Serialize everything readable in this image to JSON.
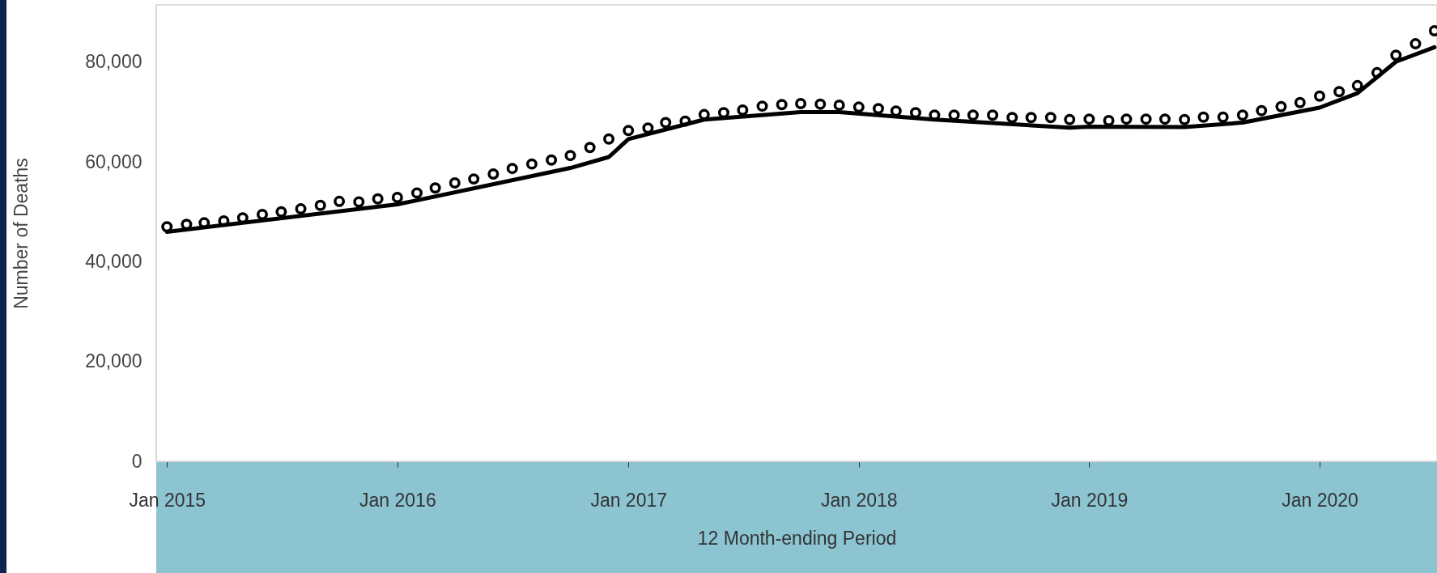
{
  "chart_data": {
    "type": "line",
    "xlabel": "12 Month-ending Period",
    "ylabel": "Number of Deaths",
    "xlim": [
      "2014-12-15",
      "2020-07-05"
    ],
    "ylim": [
      0,
      91500
    ],
    "yticks": [
      0,
      {
        "value": 20000,
        "label": "20,000"
      },
      {
        "value": 40000,
        "label": "40,000"
      },
      {
        "value": 60000,
        "label": "60,000"
      },
      {
        "value": 80000,
        "label": "80,000"
      }
    ],
    "xticks": [
      {
        "value": "2015-01",
        "label": "Jan 2015"
      },
      {
        "value": "2016-01",
        "label": "Jan 2016"
      },
      {
        "value": "2017-01",
        "label": "Jan 2017"
      },
      {
        "value": "2018-01",
        "label": "Jan 2018"
      },
      {
        "value": "2019-01",
        "label": "Jan 2019"
      },
      {
        "value": "2020-01",
        "label": "Jan 2020"
      }
    ],
    "grid": false,
    "series": [
      {
        "color": "#000000",
        "marker": "none",
        "x": [
          "2015-01",
          "2016-01",
          "2016-10",
          "2016-12",
          "2017-01",
          "2017-05",
          "2017-10",
          "2017-12",
          "2018-05",
          "2018-08",
          "2018-12",
          "2019-01",
          "2019-06",
          "2019-09",
          "2020-01",
          "2020-03",
          "2020-05",
          "2020-07"
        ],
        "values": [
          46000,
          51500,
          58800,
          61000,
          64600,
          68500,
          70000,
          70000,
          68500,
          67800,
          66900,
          67100,
          67000,
          67900,
          70900,
          73800,
          80100,
          83000
        ]
      },
      {
        "type": "scatter",
        "color": "#000000",
        "marker": "circle",
        "x": [
          "2015-01",
          "2015-02",
          "2015-03",
          "2015-04",
          "2015-05",
          "2015-06",
          "2015-07",
          "2015-08",
          "2015-09",
          "2015-10",
          "2015-11",
          "2015-12",
          "2016-01",
          "2016-02",
          "2016-03",
          "2016-04",
          "2016-05",
          "2016-06",
          "2016-07",
          "2016-08",
          "2016-09",
          "2016-10",
          "2016-11",
          "2016-12",
          "2017-01",
          "2017-02",
          "2017-03",
          "2017-04",
          "2017-05",
          "2017-06",
          "2017-07",
          "2017-08",
          "2017-09",
          "2017-10",
          "2017-11",
          "2017-12",
          "2018-01",
          "2018-02",
          "2018-03",
          "2018-04",
          "2018-05",
          "2018-06",
          "2018-07",
          "2018-08",
          "2018-09",
          "2018-10",
          "2018-11",
          "2018-12",
          "2019-01",
          "2019-02",
          "2019-03",
          "2019-04",
          "2019-05",
          "2019-06",
          "2019-07",
          "2019-08",
          "2019-09",
          "2019-10",
          "2019-11",
          "2019-12",
          "2020-01",
          "2020-02",
          "2020-03",
          "2020-04",
          "2020-05",
          "2020-06",
          "2020-07"
        ],
        "values": [
          47000,
          47500,
          47800,
          48200,
          48800,
          49500,
          50000,
          50600,
          51300,
          52100,
          52000,
          52600,
          52900,
          53800,
          54800,
          55800,
          56600,
          57600,
          58700,
          59600,
          60400,
          61300,
          62900,
          64600,
          66300,
          66800,
          67900,
          68200,
          69500,
          69900,
          70400,
          71200,
          71500,
          71700,
          71600,
          71400,
          71000,
          70700,
          70200,
          69900,
          69400,
          69400,
          69400,
          69400,
          68900,
          68900,
          68900,
          68500,
          68600,
          68300,
          68600,
          68600,
          68600,
          68500,
          69000,
          69000,
          69400,
          70300,
          71100,
          71900,
          73200,
          74100,
          75300,
          77900,
          81400,
          83700,
          86300
        ]
      }
    ]
  }
}
